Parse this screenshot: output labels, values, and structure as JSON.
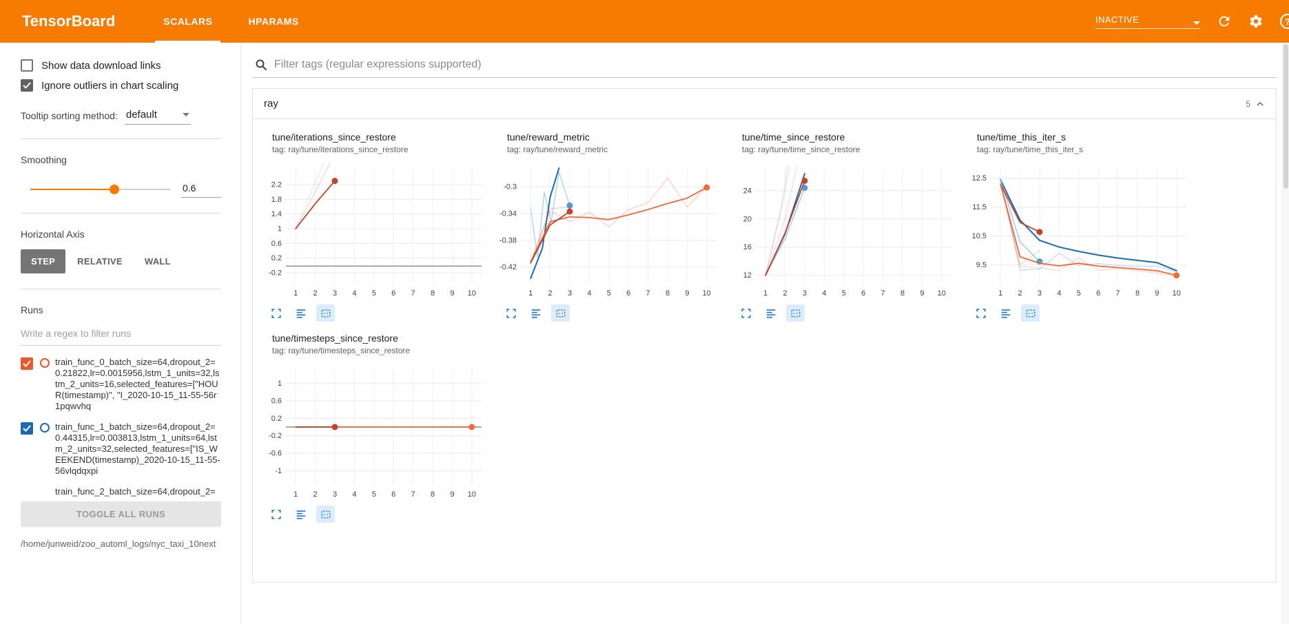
{
  "header": {
    "title": "TensorBoard",
    "tabs": [
      {
        "label": "SCALARS",
        "active": true
      },
      {
        "label": "HPARAMS",
        "active": false
      }
    ],
    "status_dropdown": "INACTIVE",
    "icons": [
      "dropdown-arrow-icon",
      "refresh-icon",
      "settings-gear-icon",
      "help-icon"
    ]
  },
  "sidebar": {
    "show_download": {
      "label": "Show data download links",
      "checked": false
    },
    "ignore_outliers": {
      "label": "Ignore outliers in chart scaling",
      "checked": true
    },
    "tooltip_sorting": {
      "label": "Tooltip sorting method:",
      "value": "default"
    },
    "smoothing": {
      "label": "Smoothing",
      "value": "0.6",
      "percent": 60
    },
    "horizontal_axis": {
      "label": "Horizontal Axis",
      "options": [
        "STEP",
        "RELATIVE",
        "WALL"
      ],
      "selected": "STEP"
    },
    "runs": {
      "label": "Runs",
      "filter_placeholder": "Write a regex to filter runs",
      "items": [
        {
          "label": "train_func_0_batch_size=64,dropout_2=0.21822,lr=0.0015956,lstm_1_units=32,lstm_2_units=16,selected_features=[\"HOUR(timestamp)\", \"I_2020-10-15_11-55-56r1pqwvhq",
          "checked": true,
          "color": "#e8572f",
          "partial": false
        },
        {
          "label": "train_func_1_batch_size=64,dropout_2=0.44315,lr=0.003813,lstm_1_units=64,lstm_2_units=32,selected_features=[\"IS_WEEKEND(timestamp)_2020-10-15_11-55-56vlqdqxpi",
          "checked": true,
          "color": "#1c6ab0",
          "partial": false
        },
        {
          "label": "train_func_2_batch_size=64,dropout_2=",
          "checked": true,
          "color": "#c0432d",
          "partial": true
        }
      ],
      "toggle_all_label": "TOGGLE ALL RUNS",
      "log_path": "/home/junweid/zoo_automl_logs/nyc_taxi_10next"
    }
  },
  "main": {
    "filter_placeholder": "Filter tags (regular expressions supported)",
    "group": {
      "title": "ray",
      "count": "5"
    }
  },
  "chart_actions": [
    {
      "icon": "fullscreen-icon",
      "active": false
    },
    {
      "icon": "runs-list-icon",
      "active": false
    },
    {
      "icon": "fit-domain-icon",
      "active": true
    }
  ],
  "chart_data": [
    {
      "type": "line",
      "title": "tune/iterations_since_restore",
      "tag": "tag: ray/tune/iterations_since_restore",
      "xlim": [
        0.5,
        10.5
      ],
      "ylim": [
        -0.5,
        2.65
      ],
      "xticks": [
        1,
        2,
        3,
        4,
        5,
        6,
        7,
        8,
        9,
        10
      ],
      "yticks": [
        2.2,
        1.8,
        1.4,
        1,
        0.6,
        0.2,
        -0.2
      ],
      "series": [
        {
          "name": "baseline-run",
          "color": "#8c8c8c",
          "width": 1.5,
          "opacity": 1,
          "points": [
            [
              0.5,
              -0.02
            ],
            [
              10.5,
              -0.02
            ]
          ]
        },
        {
          "name": "run0-raw",
          "color": "#c0432d",
          "width": 1.3,
          "opacity": 0.2,
          "points": [
            [
              1,
              1
            ],
            [
              2,
              2
            ],
            [
              2.9,
              2.95
            ]
          ]
        },
        {
          "name": "run1-raw",
          "color": "#1c6ab0",
          "width": 1.3,
          "opacity": 0.12,
          "points": [
            [
              1,
              1
            ],
            [
              1.95,
              2.2
            ],
            [
              2.55,
              2.95
            ]
          ]
        },
        {
          "name": "run0-smoothed",
          "color": "#c0432d",
          "width": 1.8,
          "opacity": 1,
          "points": [
            [
              1,
              1
            ],
            [
              2,
              1.68
            ],
            [
              3,
              2.3
            ]
          ],
          "end_dot": [
            3,
            2.3
          ]
        }
      ]
    },
    {
      "type": "line",
      "title": "tune/reward_metric",
      "tag": "tag: ray/tune/reward_metric",
      "xlim": [
        0.5,
        10.5
      ],
      "ylim": [
        -0.445,
        -0.272
      ],
      "xticks": [
        1,
        2,
        3,
        4,
        5,
        6,
        7,
        8,
        9,
        10
      ],
      "yticks": [
        -0.3,
        -0.34,
        -0.38,
        -0.42
      ],
      "series": [
        {
          "name": "run1-raw",
          "color": "#8fc3e8",
          "width": 1.3,
          "opacity": 0.75,
          "points": [
            [
              1,
              -0.332
            ],
            [
              1.35,
              -0.405
            ],
            [
              1.7,
              -0.308
            ],
            [
              2.05,
              -0.352
            ],
            [
              2.45,
              -0.278
            ],
            [
              3,
              -0.328
            ]
          ],
          "end_dot": [
            3,
            -0.328
          ],
          "dot_color": "#549cce"
        },
        {
          "name": "run1-smoothed",
          "color": "#1c6ab0",
          "width": 2,
          "opacity": 1,
          "points": [
            [
              1,
              -0.437
            ],
            [
              1.6,
              -0.392
            ],
            [
              2,
              -0.315
            ],
            [
              2.45,
              -0.272
            ]
          ]
        },
        {
          "name": "run2-raw",
          "color": "#f1683c",
          "width": 1.3,
          "opacity": 0.3,
          "points": [
            [
              1,
              -0.413
            ],
            [
              2,
              -0.336
            ],
            [
              3,
              -0.352
            ],
            [
              4,
              -0.338
            ],
            [
              5,
              -0.36
            ],
            [
              6,
              -0.334
            ],
            [
              7,
              -0.324
            ],
            [
              8,
              -0.287
            ],
            [
              9,
              -0.33
            ],
            [
              10,
              -0.3
            ]
          ]
        },
        {
          "name": "run2-smoothed",
          "color": "#f1683c",
          "width": 1.8,
          "opacity": 1,
          "points": [
            [
              1,
              -0.413
            ],
            [
              2,
              -0.352
            ],
            [
              3,
              -0.345
            ],
            [
              4,
              -0.346
            ],
            [
              5,
              -0.349
            ],
            [
              6,
              -0.342
            ],
            [
              7,
              -0.334
            ],
            [
              8,
              -0.325
            ],
            [
              9,
              -0.317
            ],
            [
              10,
              -0.301
            ]
          ],
          "end_dot": [
            10,
            -0.301
          ]
        },
        {
          "name": "run0-raw",
          "color": "#c0432d",
          "width": 1.3,
          "opacity": 0.25,
          "points": [
            [
              1,
              -0.414
            ],
            [
              2,
              -0.333
            ],
            [
              3,
              -0.33
            ]
          ]
        },
        {
          "name": "run0-smoothed",
          "color": "#c0432d",
          "width": 1.8,
          "opacity": 1,
          "points": [
            [
              1,
              -0.414
            ],
            [
              2,
              -0.357
            ],
            [
              3,
              -0.337
            ]
          ],
          "end_dot": [
            3,
            -0.337
          ]
        }
      ]
    },
    {
      "type": "line",
      "title": "tune/time_since_restore",
      "tag": "tag: ray/tune/time_since_restore",
      "xlim": [
        0.5,
        10.5
      ],
      "ylim": [
        10.8,
        27.2
      ],
      "xticks": [
        1,
        2,
        3,
        4,
        5,
        6,
        7,
        8,
        9,
        10
      ],
      "yticks": [
        24,
        20,
        16,
        12
      ],
      "series": [
        {
          "name": "run0-raw",
          "color": "#c0432d",
          "width": 1.3,
          "opacity": 0.18,
          "points": [
            [
              1,
              12
            ],
            [
              1.8,
              21.5
            ],
            [
              2.15,
              27.5
            ]
          ]
        },
        {
          "name": "run1-raw",
          "color": "#1c6ab0",
          "width": 1.3,
          "opacity": 0.12,
          "points": [
            [
              1,
              12
            ],
            [
              1.9,
              22.5
            ],
            [
              2.25,
              27.5
            ]
          ]
        },
        {
          "name": "run2-raw",
          "color": "#f1683c",
          "width": 1.3,
          "opacity": 0.22,
          "points": [
            [
              1,
              12
            ],
            [
              2,
              20
            ],
            [
              2.6,
              27.5
            ]
          ]
        },
        {
          "name": "run1-smoothed",
          "color": "#1c6ab0",
          "width": 2,
          "opacity": 1,
          "points": [
            [
              1,
              12
            ],
            [
              2,
              17.9
            ],
            [
              3,
              26.4
            ]
          ]
        },
        {
          "name": "run1-final",
          "color": "#8fc3e8",
          "width": 1.4,
          "opacity": 0.9,
          "points": [
            [
              1,
              12
            ],
            [
              2,
              17.2
            ],
            [
              3,
              24.4
            ]
          ],
          "end_dot": [
            3,
            24.4
          ],
          "dot_color": "#549cce"
        },
        {
          "name": "run0-smoothed",
          "color": "#c0432d",
          "width": 1.8,
          "opacity": 1,
          "points": [
            [
              1,
              12
            ],
            [
              2,
              18
            ],
            [
              3,
              25.4
            ]
          ],
          "end_dot": [
            3,
            25.4
          ]
        }
      ]
    },
    {
      "type": "line",
      "title": "tune/time_this_iter_s",
      "tag": "tag: ray/tune/time_this_iter_s",
      "xlim": [
        0.5,
        10.5
      ],
      "ylim": [
        8.85,
        12.85
      ],
      "xticks": [
        1,
        2,
        3,
        4,
        5,
        6,
        7,
        8,
        9,
        10
      ],
      "yticks": [
        12.5,
        11.5,
        10.5,
        9.5
      ],
      "series": [
        {
          "name": "run1-raw",
          "color": "#8fc3e8",
          "width": 1.3,
          "opacity": 0.55,
          "points": [
            [
              1,
              12.45
            ],
            [
              2,
              9.32
            ],
            [
              3,
              9.36
            ],
            [
              4,
              9.9
            ],
            [
              5,
              9.48
            ],
            [
              6,
              9.55
            ],
            [
              7,
              9.48
            ],
            [
              8,
              9.45
            ],
            [
              9,
              9.45
            ],
            [
              10,
              9.27
            ]
          ]
        },
        {
          "name": "run0-raw",
          "color": "#c0432d",
          "width": 1.3,
          "opacity": 0.2,
          "points": [
            [
              1,
              12.3
            ],
            [
              2,
              9.52
            ],
            [
              3,
              10.0
            ]
          ]
        },
        {
          "name": "run2-raw",
          "color": "#f1683c",
          "width": 1.3,
          "opacity": 0.25,
          "points": [
            [
              1,
              12.3
            ],
            [
              2,
              9.45
            ],
            [
              3,
              9.4
            ],
            [
              4,
              9.3
            ],
            [
              5,
              9.75
            ],
            [
              6,
              9.32
            ],
            [
              7,
              9.36
            ],
            [
              8,
              9.3
            ],
            [
              9,
              9.22
            ],
            [
              10,
              9.1
            ]
          ]
        },
        {
          "name": "run1-smoothed",
          "color": "#1c6ab0",
          "width": 2,
          "opacity": 1,
          "points": [
            [
              1,
              12.45
            ],
            [
              2,
              11.05
            ],
            [
              3,
              10.35
            ],
            [
              4,
              10.12
            ],
            [
              5,
              9.97
            ],
            [
              6,
              9.84
            ],
            [
              7,
              9.74
            ],
            [
              8,
              9.66
            ],
            [
              9,
              9.58
            ],
            [
              10,
              9.3
            ]
          ]
        },
        {
          "name": "run1-final",
          "color": "#8fc3e8",
          "width": 1.4,
          "opacity": 0.9,
          "points": [
            [
              1,
              12.45
            ],
            [
              2,
              10.3
            ],
            [
              3,
              9.62
            ]
          ],
          "end_dot": [
            3,
            9.62
          ],
          "dot_color": "#549cce"
        },
        {
          "name": "run0-smoothed",
          "color": "#c0432d",
          "width": 1.8,
          "opacity": 1,
          "points": [
            [
              1,
              12.3
            ],
            [
              2,
              10.97
            ],
            [
              3,
              10.64
            ]
          ],
          "end_dot": [
            3,
            10.64
          ]
        },
        {
          "name": "run2-smoothed",
          "color": "#f1683c",
          "width": 1.8,
          "opacity": 1,
          "points": [
            [
              1,
              12.3
            ],
            [
              2,
              9.78
            ],
            [
              3,
              9.56
            ],
            [
              4,
              9.47
            ],
            [
              5,
              9.56
            ],
            [
              6,
              9.46
            ],
            [
              7,
              9.41
            ],
            [
              8,
              9.36
            ],
            [
              9,
              9.3
            ],
            [
              10,
              9.14
            ]
          ],
          "end_dot": [
            10,
            9.14
          ]
        }
      ]
    },
    {
      "type": "line",
      "title": "tune/timesteps_since_restore",
      "tag": "tag: ray/tune/timesteps_since_restore",
      "xlim": [
        0.5,
        10.5
      ],
      "ylim": [
        -1.32,
        1.32
      ],
      "xticks": [
        1,
        2,
        3,
        4,
        5,
        6,
        7,
        8,
        9,
        10
      ],
      "yticks": [
        1,
        0.6,
        0.2,
        -0.2,
        -0.6,
        -1
      ],
      "series": [
        {
          "name": "baseline-run",
          "color": "#8c8c8c",
          "width": 1.5,
          "opacity": 1,
          "points": [
            [
              0.5,
              0
            ],
            [
              10.5,
              0
            ]
          ]
        },
        {
          "name": "run2-smoothed",
          "color": "#f1683c",
          "width": 1.8,
          "opacity": 1,
          "points": [
            [
              1,
              0
            ],
            [
              10,
              0
            ]
          ],
          "end_dot": [
            10,
            0
          ]
        },
        {
          "name": "run0-smoothed",
          "color": "#c0432d",
          "width": 1.8,
          "opacity": 1,
          "points": [
            [
              1,
              0
            ],
            [
              3,
              0
            ]
          ],
          "end_dot": [
            3,
            0
          ]
        }
      ]
    }
  ]
}
